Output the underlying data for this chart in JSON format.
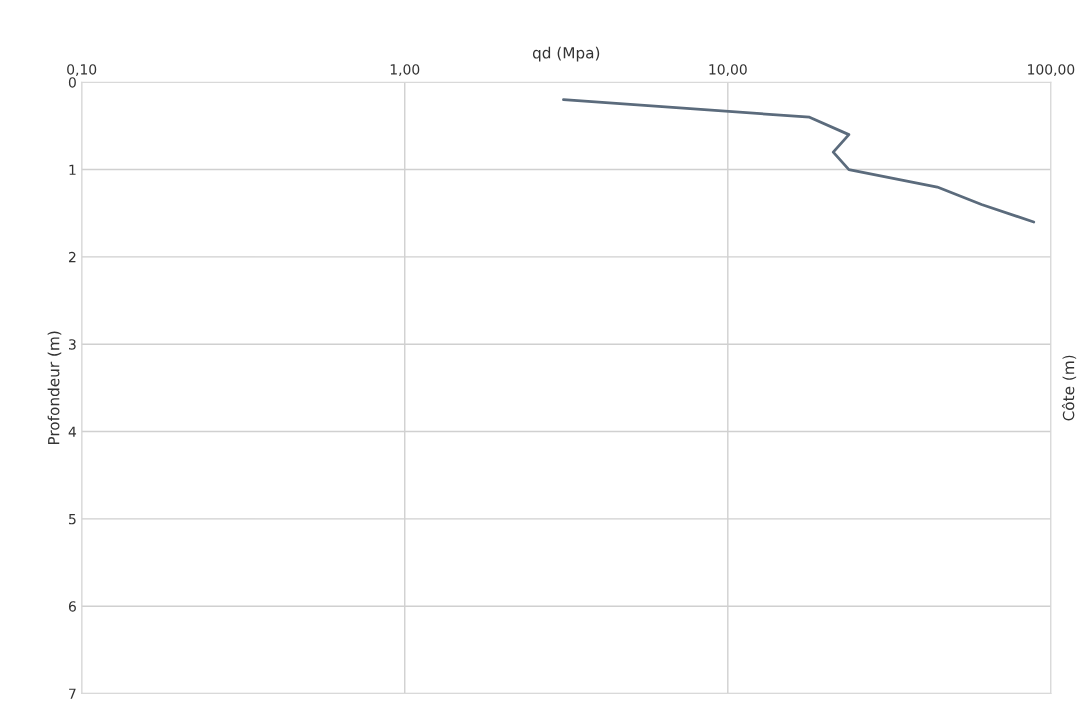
{
  "chart_data": {
    "type": "line",
    "xlabel": "qd (Mpa)",
    "ylabel": "Profondeur (m)",
    "y2label": "Côte (m)",
    "series": [
      {
        "color": "#5b6b7c",
        "x": [
          3.1,
          17.9,
          23.7,
          21.2,
          23.7,
          44.5,
          61,
          88.5
        ],
        "values": [
          0.2,
          0.4,
          0.6,
          0.8,
          1.0,
          1.2,
          1.4,
          1.6
        ]
      }
    ],
    "log": "x",
    "xlim": [
      0.1,
      100
    ],
    "xticks": [
      {
        "value": 0.1,
        "label": "0,10"
      },
      {
        "value": 1,
        "label": "1,00"
      },
      {
        "value": 10,
        "label": "10,00"
      },
      {
        "value": 100,
        "label": "100,00"
      }
    ],
    "ylim": [
      7,
      0
    ],
    "yticks": [
      0,
      1,
      2,
      3,
      4,
      5,
      6,
      7
    ],
    "grid": true,
    "marker": "none",
    "line_style": "solid"
  }
}
